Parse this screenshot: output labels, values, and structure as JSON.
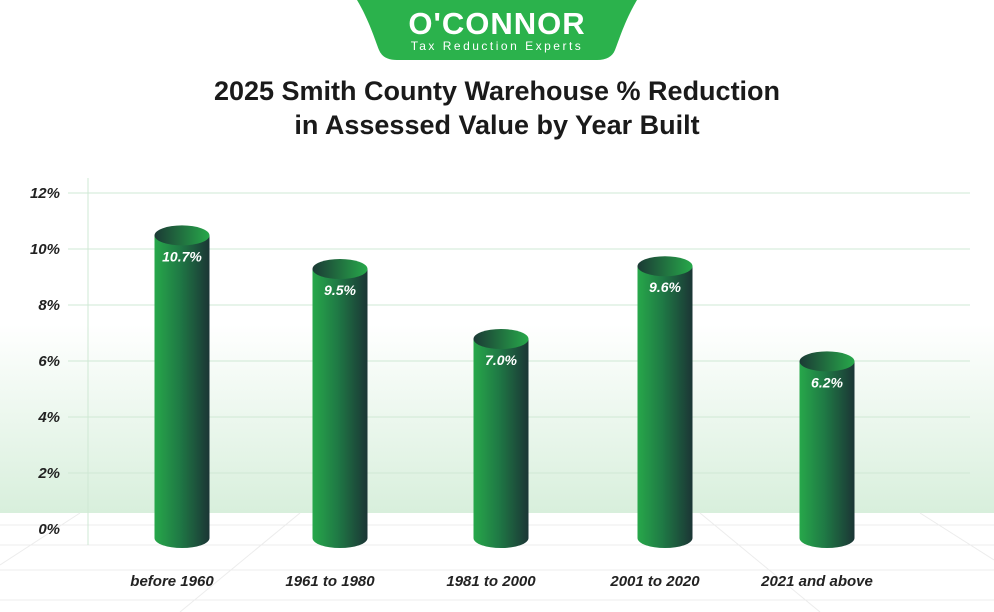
{
  "logo": {
    "name": "O'CONNOR",
    "tagline": "Tax Reduction Experts"
  },
  "colors": {
    "brand_green": "#2bb24c",
    "bar_light": "#27a84a",
    "bar_dark": "#1b3535",
    "grid": "#cfe8d4"
  },
  "chart_data": {
    "type": "bar",
    "style": "3d-cylinder",
    "title": "2025 Smith County Warehouse % Reduction in Assessed Value by Year Built",
    "title_lines": [
      "2025 Smith County Warehouse % Reduction",
      "in Assessed Value by Year Built"
    ],
    "categories": [
      "before 1960",
      "1961 to 1980",
      "1981 to 2000",
      "2001 to 2020",
      "2021 and above"
    ],
    "values": [
      10.7,
      9.5,
      7.0,
      9.6,
      6.2
    ],
    "data_labels": [
      "10.7%",
      "9.5%",
      "7.0%",
      "9.6%",
      "6.2%"
    ],
    "xlabel": "",
    "ylabel": "",
    "ylim": [
      0,
      12
    ],
    "yticks": [
      0,
      2,
      4,
      6,
      8,
      10,
      12
    ],
    "ytick_labels": [
      "0%",
      "2%",
      "4%",
      "6%",
      "8%",
      "10%",
      "12%"
    ],
    "grid": true,
    "legend": "none"
  }
}
